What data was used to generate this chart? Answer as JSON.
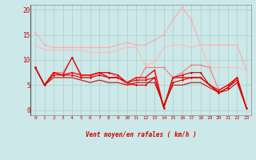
{
  "background_color": "#cce8e8",
  "grid_color": "#aacccc",
  "x_labels": [
    "0",
    "1",
    "2",
    "3",
    "4",
    "5",
    "6",
    "7",
    "8",
    "9",
    "10",
    "11",
    "12",
    "13",
    "14",
    "15",
    "16",
    "17",
    "18",
    "19",
    "20",
    "21",
    "22",
    "23"
  ],
  "x_values": [
    0,
    1,
    2,
    3,
    4,
    5,
    6,
    7,
    8,
    9,
    10,
    11,
    12,
    13,
    14,
    15,
    16,
    17,
    18,
    19,
    20,
    21,
    22,
    23
  ],
  "ylim": [
    -1,
    21
  ],
  "yticks": [
    0,
    5,
    10,
    15,
    20
  ],
  "xlabel": "Vent moyen/en rafales ( km/h )",
  "series": [
    {
      "color": "#ffaaaa",
      "linewidth": 0.8,
      "marker": "D",
      "markersize": 1.5,
      "data": [
        15.5,
        13.0,
        12.5,
        12.5,
        12.5,
        12.5,
        12.5,
        12.5,
        12.5,
        13.0,
        13.5,
        13.0,
        13.0,
        14.0,
        15.0,
        18.0,
        20.5,
        18.0,
        13.0,
        13.0,
        13.0,
        13.0,
        13.0,
        8.0
      ]
    },
    {
      "color": "#ffbbbb",
      "linewidth": 0.8,
      "marker": "D",
      "markersize": 1.5,
      "data": [
        13.0,
        12.0,
        12.0,
        12.0,
        12.0,
        12.0,
        11.5,
        11.5,
        11.5,
        12.0,
        12.5,
        12.5,
        9.0,
        9.5,
        12.5,
        13.0,
        13.0,
        12.5,
        13.0,
        8.5,
        8.5,
        8.5,
        8.5,
        8.0
      ]
    },
    {
      "color": "#ff7777",
      "linewidth": 0.8,
      "marker": "D",
      "markersize": 1.5,
      "data": [
        8.5,
        5.0,
        7.5,
        7.5,
        10.5,
        6.5,
        6.5,
        7.5,
        7.5,
        6.5,
        5.0,
        5.0,
        8.5,
        8.5,
        8.5,
        6.5,
        7.5,
        9.0,
        9.0,
        8.5,
        4.0,
        5.0,
        6.5,
        0.5
      ]
    },
    {
      "color": "#cc0000",
      "linewidth": 0.8,
      "marker": "D",
      "markersize": 1.5,
      "data": [
        8.5,
        5.0,
        7.5,
        7.0,
        10.5,
        7.0,
        7.0,
        7.5,
        7.5,
        7.0,
        5.5,
        5.0,
        5.0,
        6.5,
        0.5,
        6.5,
        7.0,
        7.5,
        7.5,
        5.0,
        3.5,
        4.5,
        6.5,
        0.5
      ]
    },
    {
      "color": "#ff0000",
      "linewidth": 1.0,
      "marker": "D",
      "markersize": 1.5,
      "data": [
        8.5,
        5.0,
        7.5,
        7.0,
        7.5,
        7.0,
        7.0,
        7.5,
        6.5,
        6.5,
        5.5,
        6.5,
        6.5,
        8.0,
        0.5,
        6.5,
        6.5,
        6.5,
        6.5,
        5.0,
        4.0,
        5.0,
        6.5,
        0.5
      ]
    },
    {
      "color": "#dd0000",
      "linewidth": 0.8,
      "marker": "D",
      "markersize": 1.5,
      "data": [
        8.5,
        5.0,
        7.0,
        7.0,
        7.0,
        6.5,
        6.5,
        7.0,
        6.5,
        6.5,
        5.5,
        6.0,
        6.0,
        6.5,
        0.5,
        5.5,
        6.0,
        6.5,
        6.5,
        5.0,
        3.5,
        4.5,
        6.0,
        0.5
      ]
    },
    {
      "color": "#bb1100",
      "linewidth": 0.8,
      "marker": null,
      "markersize": 0,
      "data": [
        8.5,
        5.0,
        6.5,
        6.5,
        6.5,
        6.0,
        5.5,
        6.0,
        5.5,
        5.5,
        5.0,
        5.5,
        5.5,
        5.5,
        1.0,
        5.0,
        5.0,
        5.5,
        5.5,
        4.5,
        3.5,
        4.0,
        5.5,
        0.5
      ]
    }
  ],
  "wind_arrows": [
    "↓",
    "→",
    "→",
    "→",
    "→",
    "→",
    "→",
    "→",
    "→",
    "→",
    "↙",
    "↙",
    "↙",
    "↓",
    "←",
    "←",
    "↗",
    "↗",
    "↗",
    "↑",
    "↑",
    "↓",
    "",
    ""
  ]
}
